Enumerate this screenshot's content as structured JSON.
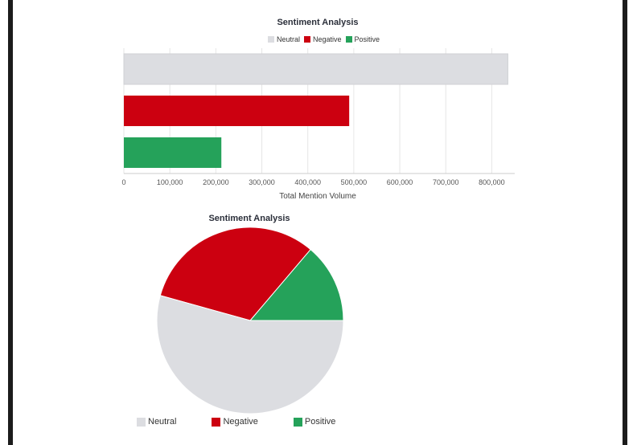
{
  "chart_data": [
    {
      "type": "bar",
      "orientation": "horizontal",
      "title": "Sentiment Analysis",
      "categories": [
        "Neutral",
        "Negative",
        "Positive"
      ],
      "values": [
        835000,
        490000,
        212000
      ],
      "colors": [
        "#dcdde1",
        "#cc0010",
        "#25a25a"
      ],
      "xlabel": "Total Mention Volume",
      "ylabel": "",
      "xlim": [
        0,
        850000
      ],
      "xticks": [
        "0",
        "100,000",
        "200,000",
        "300,000",
        "400,000",
        "500,000",
        "600,000",
        "700,000",
        "800,000"
      ],
      "legend": [
        "Neutral",
        "Negative",
        "Positive"
      ],
      "legend_position": "top-center",
      "grid": true
    },
    {
      "type": "pie",
      "title": "Sentiment Analysis",
      "labels": [
        "Neutral",
        "Negative",
        "Positive"
      ],
      "values": [
        835000,
        490000,
        212000
      ],
      "colors": [
        "#dcdde1",
        "#cc0010",
        "#25a25a"
      ],
      "legend": [
        "Neutral",
        "Negative",
        "Positive"
      ],
      "legend_position": "bottom-left"
    }
  ]
}
